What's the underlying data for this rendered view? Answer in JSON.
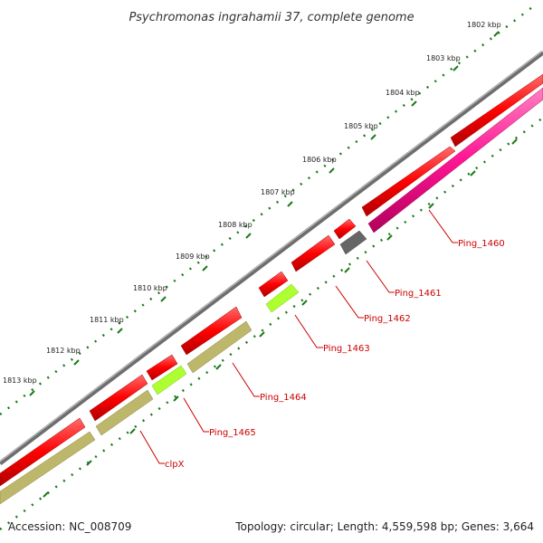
{
  "title": "Psychromonas ingrahamii 37, complete genome",
  "footer": {
    "accession": "Accession: NC_008709",
    "summary": "Topology: circular; Length: 4,559,598 bp; Genes: 3,664"
  },
  "colors": {
    "backbone": "#888888",
    "forward_cds": "#ff0000",
    "reverse_cds": "#ff0000",
    "ticks": "#1a7a1a",
    "label": "#cc0000",
    "pink_track": "#ff1493",
    "olive_track": "#bdb76b",
    "lime_track": "#adff2f",
    "gray_track": "#666666"
  },
  "kbp_labels": [
    "1802 kbp",
    "1803 kbp",
    "1804 kbp",
    "1805 kbp",
    "1806 kbp",
    "1807 kbp",
    "1808 kbp",
    "1809 kbp",
    "1810 kbp",
    "1811 kbp",
    "1812 kbp",
    "1813 kbp"
  ],
  "gene_labels": [
    "Ping_1460",
    "Ping_1461",
    "Ping_1462",
    "Ping_1463",
    "Ping_1464",
    "Ping_1465",
    "clpX"
  ]
}
